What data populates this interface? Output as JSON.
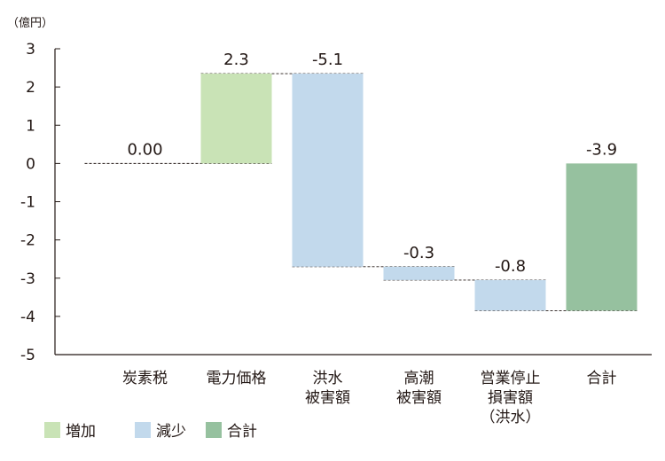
{
  "chart_data": {
    "type": "bar",
    "subtype": "waterfall",
    "unit": "（億円）",
    "ylim": [
      -5,
      3
    ],
    "yticks": [
      "3",
      "2",
      "1",
      "0",
      "-1",
      "-2",
      "-3",
      "-4",
      "-5"
    ],
    "grid": false,
    "categories": [
      [
        "炭素税"
      ],
      [
        "電力価格"
      ],
      [
        "洪水",
        "被害額"
      ],
      [
        "高潮",
        "被害額"
      ],
      [
        "営業停止",
        "損害額",
        "（洪水）"
      ],
      [
        "合計"
      ]
    ],
    "bars": [
      {
        "start": 0,
        "end": 0,
        "label": "0.00",
        "kind": "none"
      },
      {
        "start": 0,
        "end": 2.35,
        "label": "2.3",
        "kind": "increase"
      },
      {
        "start": 2.35,
        "end": -2.7,
        "label": "-5.1",
        "kind": "decrease"
      },
      {
        "start": -2.7,
        "end": -3.05,
        "label": "-0.3",
        "kind": "decrease"
      },
      {
        "start": -3.05,
        "end": -3.85,
        "label": "-0.8",
        "kind": "decrease"
      },
      {
        "start": 0,
        "end": -3.85,
        "label": "-3.9",
        "kind": "total"
      }
    ],
    "colors": {
      "increase": "#c9e3b6",
      "decrease": "#c2d9ec",
      "total": "#96c19f"
    },
    "legend": {
      "position": "bottom-left",
      "items": [
        {
          "label": "増加",
          "kind": "increase"
        },
        {
          "label": "減少",
          "kind": "decrease"
        },
        {
          "label": "合計",
          "kind": "total"
        }
      ]
    }
  }
}
